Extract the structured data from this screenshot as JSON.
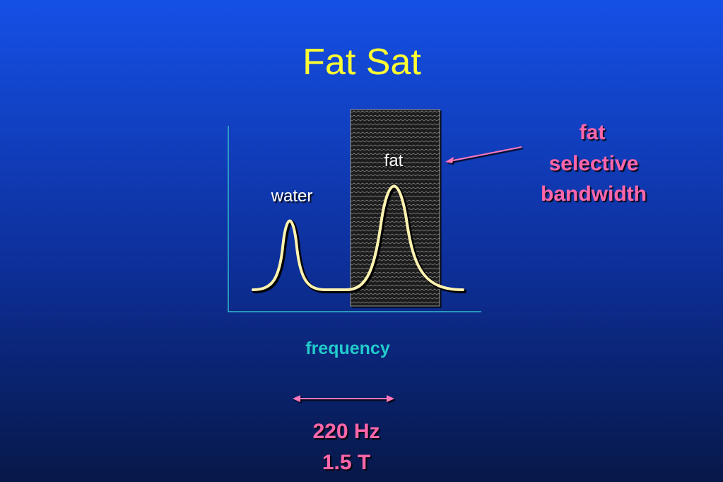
{
  "title": "Fat Sat",
  "peaks": {
    "water": "water",
    "fat": "fat"
  },
  "bandwidth_label": [
    "fat",
    "selective",
    "bandwidth"
  ],
  "axis_label": "frequency",
  "separation": [
    "220 Hz",
    "1.5 T"
  ]
}
